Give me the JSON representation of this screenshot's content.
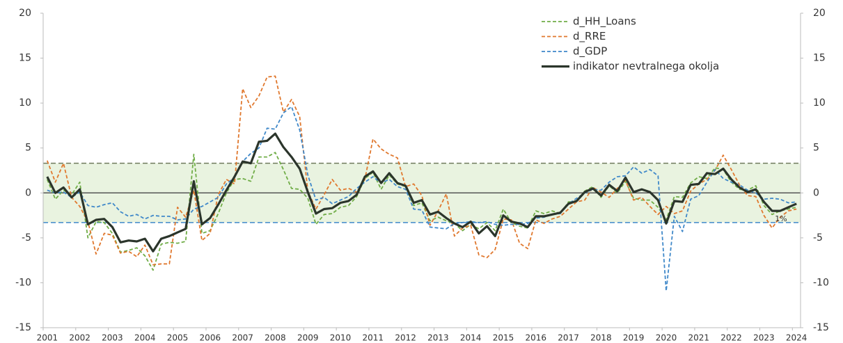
{
  "chart_data": {
    "type": "line",
    "categories": [
      "2001",
      null,
      null,
      null,
      "2002",
      null,
      null,
      null,
      "2003",
      null,
      null,
      null,
      "2004",
      null,
      null,
      null,
      "2005",
      null,
      null,
      null,
      "2006",
      null,
      null,
      null,
      "2007",
      null,
      null,
      null,
      "2008",
      null,
      null,
      null,
      "2009",
      null,
      null,
      null,
      "2010",
      null,
      null,
      null,
      "2011",
      null,
      null,
      null,
      "2012",
      null,
      null,
      null,
      "2013",
      null,
      null,
      null,
      "2014",
      null,
      null,
      null,
      "2015",
      null,
      null,
      null,
      "2016",
      null,
      null,
      null,
      "2017",
      null,
      null,
      null,
      "2018",
      null,
      null,
      null,
      "2019",
      null,
      null,
      null,
      "2020",
      null,
      null,
      null,
      "2021",
      null,
      null,
      null,
      "2022",
      null,
      null,
      null,
      "2023",
      null,
      null,
      null,
      "2024"
    ],
    "series": [
      {
        "name": "d_HH_Loans",
        "color": "#70ad47",
        "style": "dashed",
        "width": 1.8,
        "values": [
          1.5,
          -0.7,
          0.3,
          -0.2,
          1.2,
          -5.0,
          -3.2,
          -3.3,
          -4.5,
          -6.6,
          -6.4,
          -6.1,
          -7.0,
          -8.6,
          -5.7,
          -5.5,
          -5.6,
          -5.4,
          4.3,
          -4.5,
          -4.2,
          -2.3,
          0,
          1.5,
          1.6,
          1.3,
          4.0,
          4.0,
          4.5,
          2.6,
          0.5,
          0.4,
          -0.6,
          -3.5,
          -2.4,
          -2.3,
          -1.6,
          -1.4,
          -0.4,
          1.6,
          2.3,
          0.4,
          2.0,
          1.0,
          0.7,
          -1.4,
          -1.1,
          -3.1,
          -2.7,
          -3.1,
          -3.4,
          -4.2,
          -3.5,
          -4.0,
          -3.3,
          -4.2,
          -1.8,
          -3.3,
          -3.7,
          -3.9,
          -2.0,
          -2.3,
          -2.0,
          -2.3,
          -1.0,
          -1.0,
          0.2,
          0.7,
          -0.5,
          0.8,
          0,
          1.3,
          -0.6,
          -0.8,
          -0.8,
          -1.6,
          -3.0,
          -0.4,
          -0.5,
          1.1,
          1.8,
          1.6,
          2.8,
          2.6,
          1.2,
          0.4,
          0.3,
          0.8,
          -1.4,
          -2.4,
          -2.0,
          -1.8,
          -1.6
        ]
      },
      {
        "name": "d_RRE",
        "color": "#e0782e",
        "style": "dashed",
        "width": 1.8,
        "values": [
          3.6,
          1.2,
          3.3,
          -0.5,
          -1.5,
          -3.2,
          -6.8,
          -4.5,
          -4.7,
          -6.7,
          -6.5,
          -7.1,
          -5.8,
          -8.0,
          -7.9,
          -7.9,
          -1.6,
          -2.7,
          0.3,
          -5.3,
          -4.5,
          -0.2,
          1.5,
          1.0,
          11.6,
          9.5,
          10.8,
          12.9,
          13.0,
          9.0,
          10.4,
          8.5,
          0.2,
          -1.8,
          -0.2,
          1.5,
          0.3,
          0.5,
          0.1,
          1.5,
          6.0,
          4.9,
          4.3,
          3.9,
          0.7,
          1.0,
          -0.3,
          -3.6,
          -2.0,
          -0.1,
          -4.8,
          -3.9,
          -3.6,
          -6.9,
          -7.2,
          -6.3,
          -2.9,
          -3.0,
          -5.6,
          -6.2,
          -3.0,
          -3.4,
          -2.9,
          -2.6,
          -1.8,
          -1.0,
          -0.8,
          0.6,
          0.1,
          -0.5,
          0.5,
          1.4,
          -0.8,
          -0.5,
          -1.5,
          -2.4,
          -1.5,
          -2.3,
          -2.0,
          0.2,
          1.0,
          1.5,
          2.5,
          4.2,
          2.6,
          0.9,
          -0.3,
          -0.4,
          -2.5,
          -3.9,
          -2.7,
          -2.0,
          -1.8
        ]
      },
      {
        "name": "d_GDP",
        "color": "#3f88c9",
        "style": "dashed",
        "width": 1.8,
        "values": [
          0.3,
          0,
          0.1,
          -0.5,
          0.1,
          -1.4,
          -1.6,
          -1.3,
          -1.1,
          -2.1,
          -2.6,
          -2.4,
          -2.9,
          -2.5,
          -2.6,
          -2.6,
          -3.0,
          -2.9,
          -1.8,
          -1.5,
          -1.0,
          -0.5,
          1.0,
          1.7,
          3.5,
          4.4,
          5.0,
          7.2,
          7.1,
          8.9,
          9.6,
          7.0,
          2.0,
          -0.8,
          -0.5,
          -1.2,
          -0.8,
          -0.4,
          0.5,
          1.2,
          1.8,
          1.1,
          1.5,
          0.7,
          0.4,
          -1.8,
          -1.9,
          -3.8,
          -3.9,
          -4.0,
          -3.4,
          -3.3,
          -3.2,
          -3.3,
          -3.2,
          -3.5,
          -3.6,
          -3.5,
          -3.5,
          -3.4,
          -2.8,
          -2.7,
          -2.4,
          -2.3,
          -1.2,
          -0.6,
          0,
          0.4,
          0.3,
          1.2,
          1.8,
          1.9,
          2.9,
          2.2,
          2.6,
          1.9,
          -10.9,
          -2.6,
          -4.3,
          -0.7,
          -0.3,
          1.2,
          2.6,
          1.6,
          1.2,
          0.9,
          0.3,
          0,
          -0.7,
          -0.6,
          -0.7,
          -1.1,
          -1.0
        ]
      },
      {
        "name": "indikator nevtralnega okolja",
        "color": "#2b352b",
        "style": "solid",
        "width": 3.2,
        "values": [
          1.8,
          0,
          0.6,
          -0.5,
          0.4,
          -3.5,
          -3.0,
          -2.9,
          -3.8,
          -5.5,
          -5.3,
          -5.4,
          -5.1,
          -6.5,
          -5.1,
          -4.8,
          -4.4,
          -4.0,
          1.3,
          -3.5,
          -2.8,
          -1.3,
          0.3,
          1.8,
          3.5,
          3.3,
          5.7,
          5.8,
          6.6,
          5.1,
          4.0,
          2.7,
          0.1,
          -2.3,
          -1.8,
          -1.7,
          -1.1,
          -0.9,
          -0.2,
          1.8,
          2.4,
          1.1,
          2.2,
          1.1,
          0.8,
          -1.1,
          -0.8,
          -2.4,
          -2.1,
          -2.8,
          -3.4,
          -3.8,
          -3.2,
          -4.5,
          -3.7,
          -4.8,
          -2.5,
          -3.2,
          -3.4,
          -3.8,
          -2.6,
          -2.6,
          -2.4,
          -2.2,
          -1.2,
          -0.9,
          0.1,
          0.5,
          -0.3,
          0.9,
          0.2,
          1.7,
          0.1,
          0.4,
          0.1,
          -0.8,
          -3.4,
          -0.9,
          -1.0,
          0.9,
          1.0,
          2.2,
          2.1,
          2.7,
          1.5,
          0.6,
          0.1,
          0.4,
          -1.0,
          -2.0,
          -2.0,
          -1.6,
          -1.2
        ]
      }
    ],
    "ylim": [
      -15,
      20
    ],
    "yticks": [
      -15,
      -10,
      -5,
      0,
      5,
      10,
      15,
      20
    ],
    "y2lim": [
      -15,
      20
    ],
    "y2ticks": [
      -15,
      -10,
      -5,
      0,
      5,
      10,
      15,
      20
    ],
    "shaded_range": [
      -3.3,
      3.3
    ],
    "shade_color": "#e9f3e0",
    "reference_lines": [
      {
        "value": 3.3,
        "color": "#6f7a5c"
      },
      {
        "value": -3.3,
        "color": "#3f88c9"
      }
    ],
    "zero_line_color": "#555555",
    "annotations": [
      {
        "text": "1%"
      }
    ],
    "legend": "top-right",
    "grid": false
  }
}
